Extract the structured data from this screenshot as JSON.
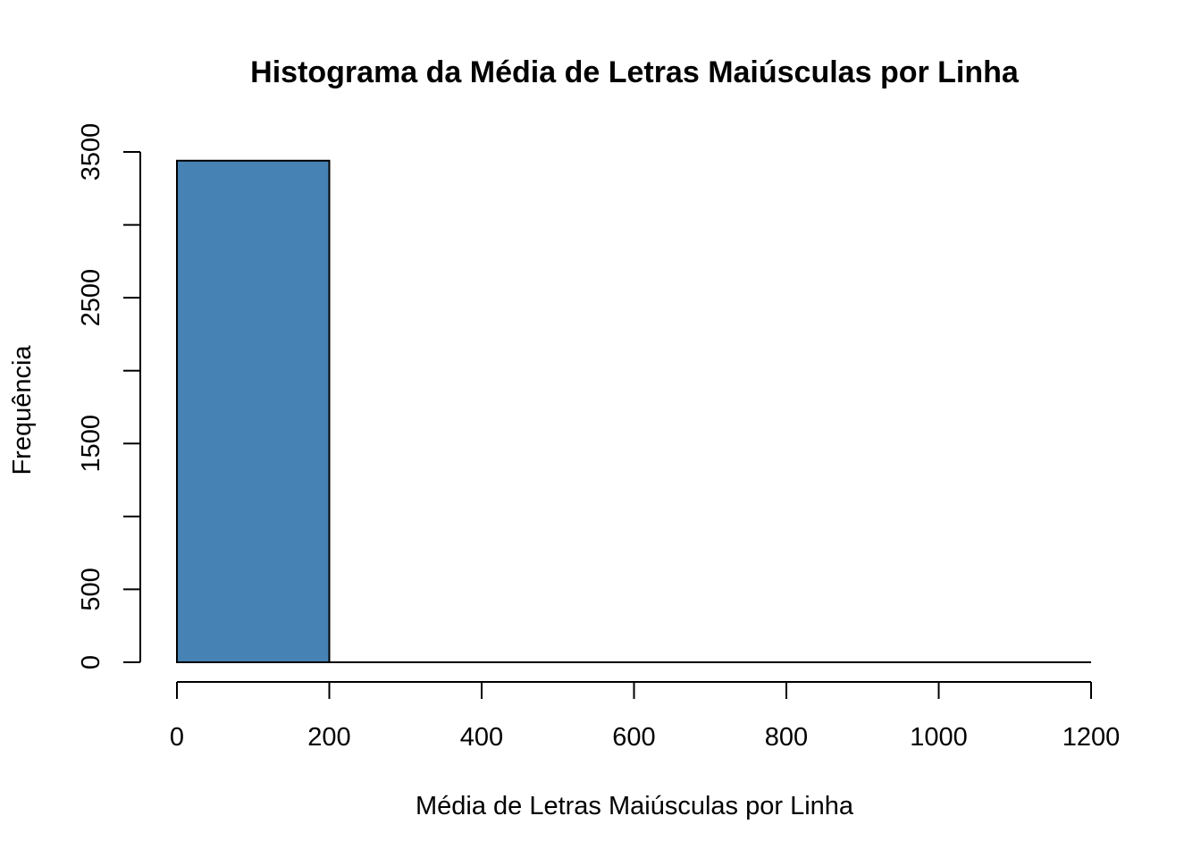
{
  "chart_data": {
    "type": "bar",
    "title": "Histograma da Média de Letras Maiúsculas por Linha",
    "xlabel": "Média de Letras Maiúsculas por Linha",
    "ylabel": "Frequência",
    "bins": [
      {
        "start": 0,
        "end": 200,
        "value": 3440
      },
      {
        "start": 200,
        "end": 400,
        "value": 0
      },
      {
        "start": 400,
        "end": 600,
        "value": 0
      },
      {
        "start": 600,
        "end": 800,
        "value": 0
      },
      {
        "start": 800,
        "end": 1000,
        "value": 0
      },
      {
        "start": 1000,
        "end": 1200,
        "value": 0
      }
    ],
    "xlim": [
      0,
      1200
    ],
    "ylim": [
      0,
      3500
    ],
    "x_ticks": [
      0,
      200,
      400,
      600,
      800,
      1000,
      1200
    ],
    "x_tick_labels": [
      "0",
      "200",
      "400",
      "600",
      "800",
      "1000",
      "1200"
    ],
    "y_ticks": [
      0,
      500,
      1000,
      1500,
      2000,
      2500,
      3000,
      3500
    ],
    "y_tick_labels": [
      "0",
      "500",
      "",
      "1500",
      "",
      "2500",
      "",
      "3500"
    ],
    "bar_color": "#4682B4",
    "grid": false,
    "legend": "none"
  }
}
